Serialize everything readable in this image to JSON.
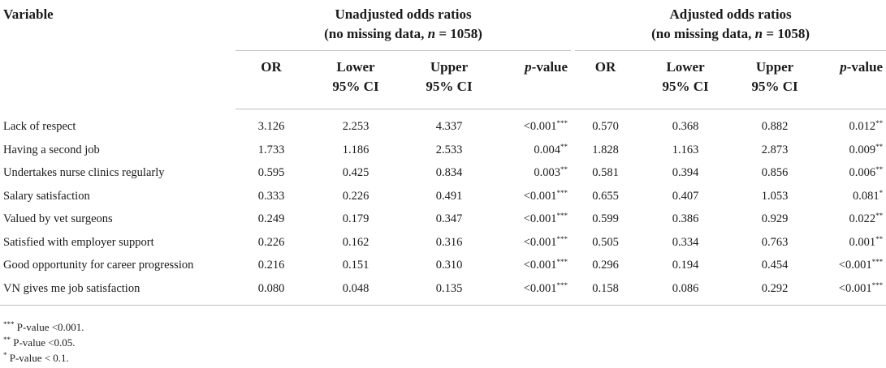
{
  "header": {
    "variable": "Variable",
    "unadjusted": {
      "title_line1": "Unadjusted odds ratios",
      "title_line2_pre": "(no missing data, ",
      "title_line2_n": "n",
      "title_line2_post": " = 1058)"
    },
    "adjusted": {
      "title_line1": "Adjusted odds ratios",
      "title_line2_pre": "(no missing data, ",
      "title_line2_n": "n",
      "title_line2_post": " = 1058)"
    },
    "cols": {
      "or": "OR",
      "lower_1": "Lower",
      "lower_2": "95% CI",
      "upper_1": "Upper",
      "upper_2": "95% CI",
      "p_italic": "p",
      "p_rest": "-value"
    }
  },
  "rows": [
    {
      "name": "Lack of respect",
      "u": [
        "3.126",
        "2.253",
        "4.337",
        "<0.001",
        "***"
      ],
      "a": [
        "0.570",
        "0.368",
        "0.882",
        "0.012",
        "**"
      ]
    },
    {
      "name": "Having a second job",
      "u": [
        "1.733",
        "1.186",
        "2.533",
        "0.004",
        "**"
      ],
      "a": [
        "1.828",
        "1.163",
        "2.873",
        "0.009",
        "**"
      ]
    },
    {
      "name": "Undertakes nurse clinics regularly",
      "u": [
        "0.595",
        "0.425",
        "0.834",
        "0.003",
        "**"
      ],
      "a": [
        "0.581",
        "0.394",
        "0.856",
        "0.006",
        "**"
      ]
    },
    {
      "name": "Salary satisfaction",
      "u": [
        "0.333",
        "0.226",
        "0.491",
        "<0.001",
        "***"
      ],
      "a": [
        "0.655",
        "0.407",
        "1.053",
        "0.081",
        "*"
      ]
    },
    {
      "name": "Valued by vet surgeons",
      "u": [
        "0.249",
        "0.179",
        "0.347",
        "<0.001",
        "***"
      ],
      "a": [
        "0.599",
        "0.386",
        "0.929",
        "0.022",
        "**"
      ]
    },
    {
      "name": "Satisfied with employer support",
      "u": [
        "0.226",
        "0.162",
        "0.316",
        "<0.001",
        "***"
      ],
      "a": [
        "0.505",
        "0.334",
        "0.763",
        "0.001",
        "**"
      ]
    },
    {
      "name": "Good opportunity for career progression",
      "u": [
        "0.216",
        "0.151",
        "0.310",
        "<0.001",
        "***"
      ],
      "a": [
        "0.296",
        "0.194",
        "0.454",
        "<0.001",
        "***"
      ]
    },
    {
      "name": "VN gives me job satisfaction",
      "u": [
        "0.080",
        "0.048",
        "0.135",
        "<0.001",
        "***"
      ],
      "a": [
        "0.158",
        "0.086",
        "0.292",
        "<0.001",
        "***"
      ]
    }
  ],
  "footnotes": [
    {
      "mark": "***",
      "text": " P-value <0.001."
    },
    {
      "mark": "**",
      "text": " P-value <0.05."
    },
    {
      "mark": "*",
      "text": " P-value < 0.1."
    }
  ]
}
